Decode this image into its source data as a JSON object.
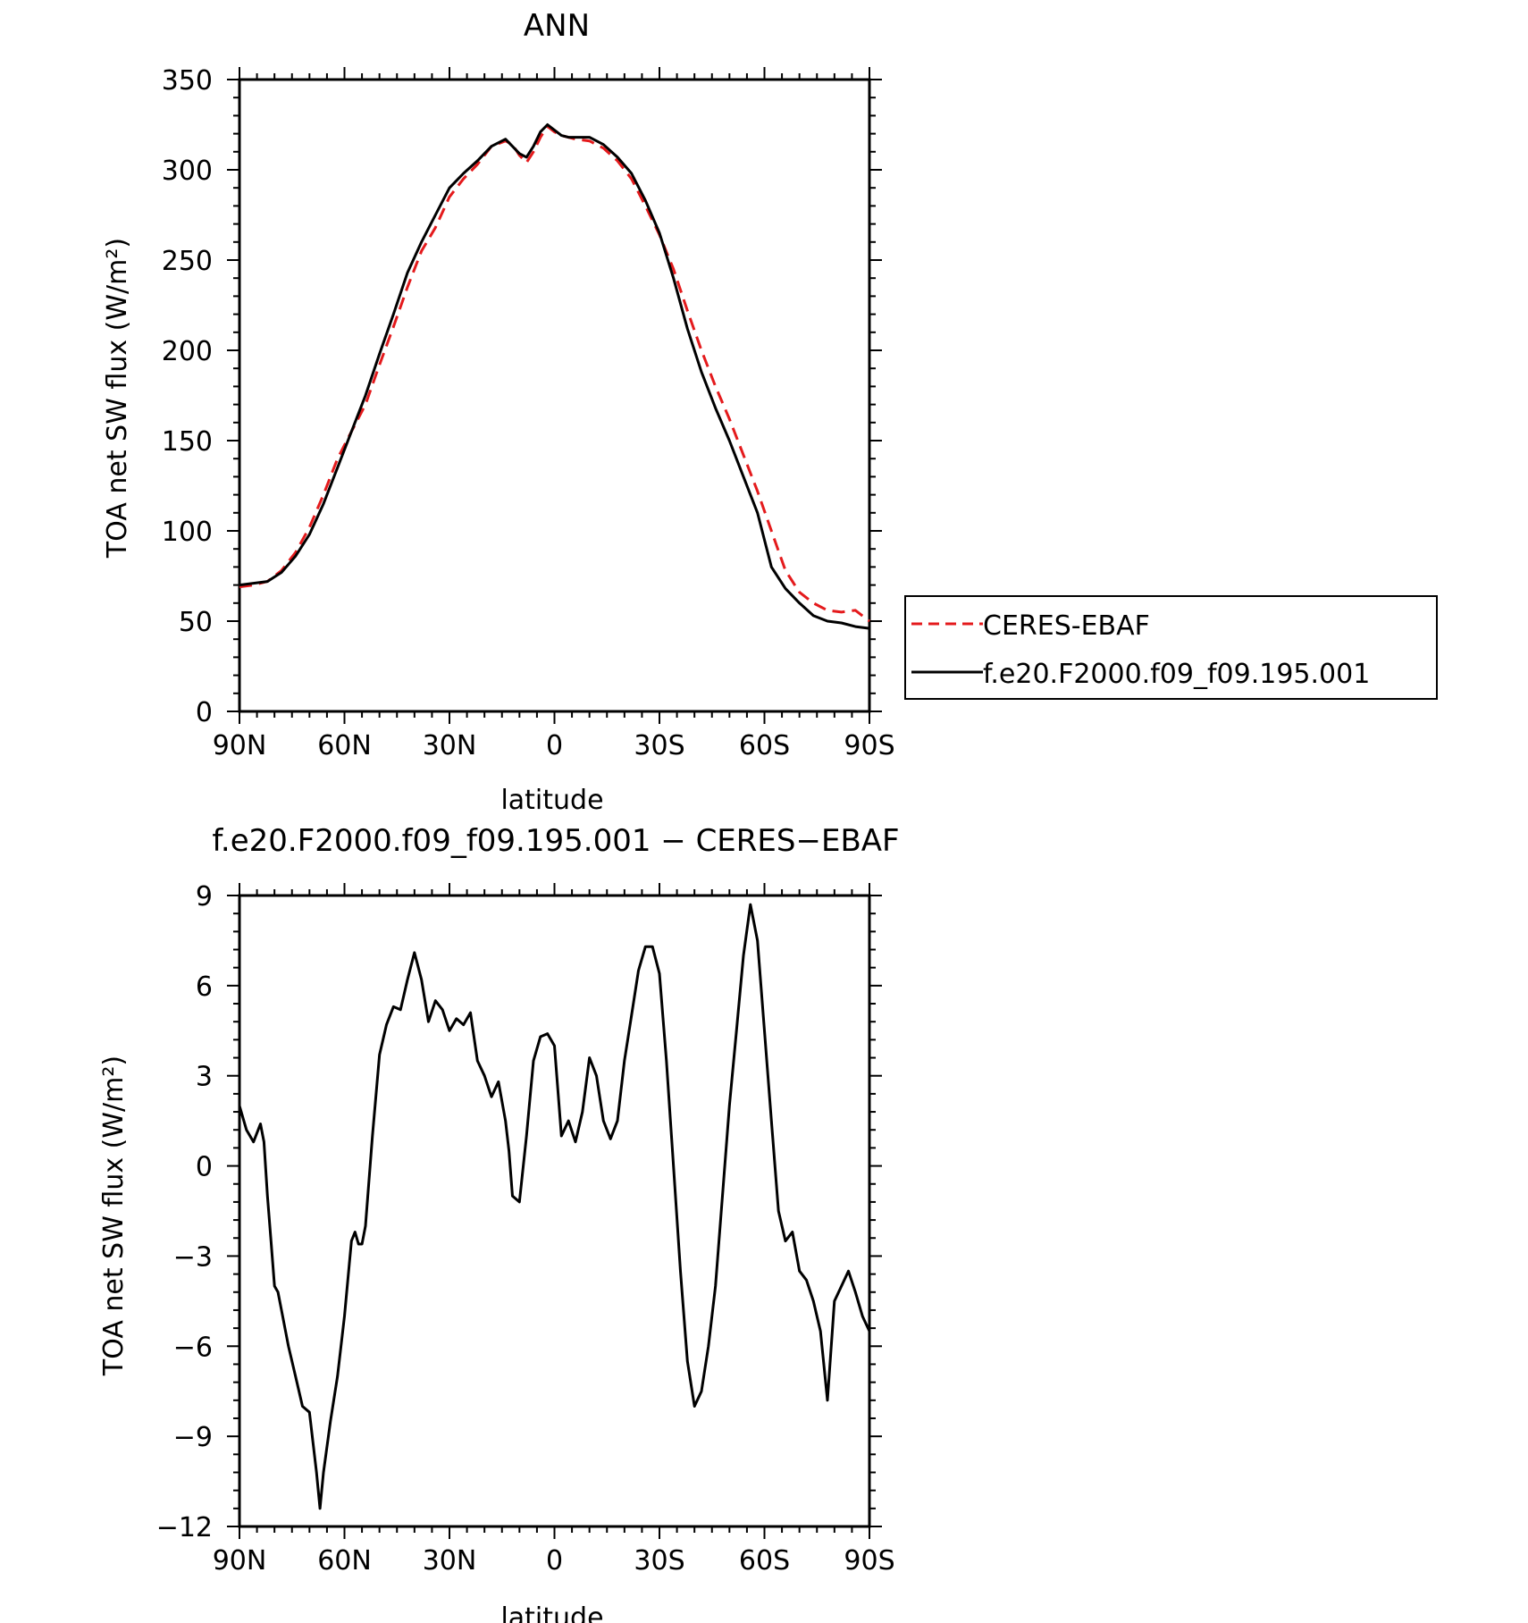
{
  "chart_data": [
    {
      "type": "line",
      "title": "ANN",
      "xlabel": "latitude",
      "ylabel": "TOA net SW flux (W/m²)",
      "x_tick_labels": [
        "90N",
        "60N",
        "30N",
        "0",
        "30S",
        "60S",
        "90S"
      ],
      "x_tick_values": [
        90,
        60,
        30,
        0,
        -30,
        -60,
        -90
      ],
      "xlim": [
        90,
        -90
      ],
      "ylim": [
        0,
        350
      ],
      "y_ticks": [
        0,
        50,
        100,
        150,
        200,
        250,
        300,
        350
      ],
      "legend_position": "right",
      "series": [
        {
          "name": "CERES-EBAF",
          "color": "#e41a1c",
          "dash": "dashed",
          "x": [
            90,
            86,
            82,
            78,
            74,
            70,
            66,
            62,
            58,
            54,
            50,
            46,
            42,
            38,
            34,
            30,
            26,
            22,
            18,
            14,
            12,
            10,
            8,
            6,
            4,
            2,
            0,
            -2,
            -6,
            -10,
            -14,
            -18,
            -22,
            -26,
            -30,
            -34,
            -38,
            -42,
            -46,
            -50,
            -54,
            -58,
            -62,
            -66,
            -70,
            -74,
            -78,
            -82,
            -86,
            -90
          ],
          "y": [
            69,
            70,
            72,
            78,
            88,
            102,
            120,
            140,
            155,
            170,
            192,
            213,
            235,
            255,
            268,
            285,
            295,
            303,
            313,
            316,
            314,
            308,
            304,
            310,
            318,
            324,
            321,
            319,
            317,
            316,
            312,
            305,
            295,
            280,
            264,
            245,
            222,
            200,
            180,
            162,
            142,
            122,
            100,
            78,
            66,
            60,
            56,
            55,
            56,
            50
          ]
        },
        {
          "name": "f.e20.F2000.f09_f09.195.001",
          "color": "#000000",
          "dash": "solid",
          "x": [
            90,
            86,
            82,
            78,
            74,
            70,
            66,
            62,
            58,
            54,
            50,
            46,
            42,
            38,
            34,
            30,
            26,
            22,
            18,
            14,
            12,
            10,
            8,
            6,
            4,
            2,
            0,
            -2,
            -4,
            -6,
            -10,
            -14,
            -18,
            -22,
            -26,
            -30,
            -34,
            -38,
            -42,
            -46,
            -50,
            -54,
            -58,
            -62,
            -66,
            -70,
            -74,
            -78,
            -82,
            -86,
            -90
          ],
          "y": [
            70,
            71,
            72,
            77,
            86,
            98,
            115,
            135,
            155,
            175,
            198,
            220,
            243,
            260,
            275,
            290,
            298,
            305,
            313,
            317,
            313,
            309,
            307,
            313,
            321,
            325,
            322,
            319,
            318,
            318,
            318,
            314,
            307,
            298,
            283,
            265,
            240,
            212,
            188,
            168,
            150,
            130,
            110,
            80,
            68,
            60,
            53,
            50,
            49,
            47,
            46
          ]
        }
      ]
    },
    {
      "type": "line",
      "title": "f.e20.F2000.f09_f09.195.001 − CERES−EBAF",
      "xlabel": "latitude",
      "ylabel": "TOA net SW flux (W/m²)",
      "x_tick_labels": [
        "90N",
        "60N",
        "30N",
        "0",
        "30S",
        "60S",
        "90S"
      ],
      "x_tick_values": [
        90,
        60,
        30,
        0,
        -30,
        -60,
        -90
      ],
      "xlim": [
        90,
        -90
      ],
      "ylim": [
        -12,
        9
      ],
      "y_ticks": [
        -12,
        -9,
        -6,
        -3,
        0,
        3,
        6,
        9
      ],
      "y_tick_labels": [
        "−12",
        "−9",
        "−6",
        "−3",
        "0",
        "3",
        "6",
        "9"
      ],
      "series": [
        {
          "color": "#000000",
          "dash": "solid",
          "x": [
            90,
            88,
            86,
            84,
            83,
            82,
            81,
            80,
            79,
            78,
            76,
            74,
            72,
            70,
            68,
            67,
            66,
            64,
            62,
            60,
            58,
            57,
            56,
            55,
            54,
            52,
            50,
            48,
            46,
            44,
            42,
            40,
            38,
            36,
            34,
            32,
            30,
            28,
            26,
            24,
            22,
            20,
            18,
            16,
            14,
            13,
            12,
            10,
            8,
            6,
            4,
            2,
            0,
            -2,
            -4,
            -6,
            -8,
            -10,
            -12,
            -14,
            -16,
            -18,
            -20,
            -22,
            -24,
            -26,
            -28,
            -30,
            -32,
            -34,
            -36,
            -38,
            -40,
            -42,
            -44,
            -46,
            -48,
            -50,
            -52,
            -54,
            -56,
            -58,
            -60,
            -62,
            -64,
            -66,
            -68,
            -70,
            -72,
            -74,
            -76,
            -78,
            -80,
            -82,
            -84,
            -86,
            -88,
            -90
          ],
          "y": [
            2.0,
            1.2,
            0.8,
            1.4,
            0.8,
            -1.0,
            -2.5,
            -4.0,
            -4.2,
            -4.8,
            -6.0,
            -7.0,
            -8.0,
            -8.2,
            -10.2,
            -11.4,
            -10.2,
            -8.5,
            -7.0,
            -5.0,
            -2.5,
            -2.2,
            -2.6,
            -2.6,
            -2.0,
            1.0,
            3.7,
            4.7,
            5.3,
            5.2,
            6.2,
            7.1,
            6.2,
            4.8,
            5.5,
            5.2,
            4.5,
            4.9,
            4.7,
            5.1,
            3.5,
            3.0,
            2.3,
            2.8,
            1.5,
            0.5,
            -1.0,
            -1.2,
            1.0,
            3.5,
            4.3,
            4.4,
            4.0,
            1.0,
            1.5,
            0.8,
            1.8,
            3.6,
            3.0,
            1.5,
            0.9,
            1.5,
            3.5,
            5.0,
            6.5,
            7.3,
            7.3,
            6.4,
            3.5,
            0.0,
            -3.5,
            -6.5,
            -8.0,
            -7.5,
            -6.0,
            -4.0,
            -1.0,
            2.0,
            4.5,
            7.0,
            8.7,
            7.5,
            4.5,
            1.5,
            -1.5,
            -2.5,
            -2.2,
            -3.5,
            -3.8,
            -4.5,
            -5.5,
            -7.8,
            -4.5,
            -4.0,
            -3.5,
            -4.2,
            -5.0,
            -5.5
          ]
        }
      ]
    }
  ]
}
